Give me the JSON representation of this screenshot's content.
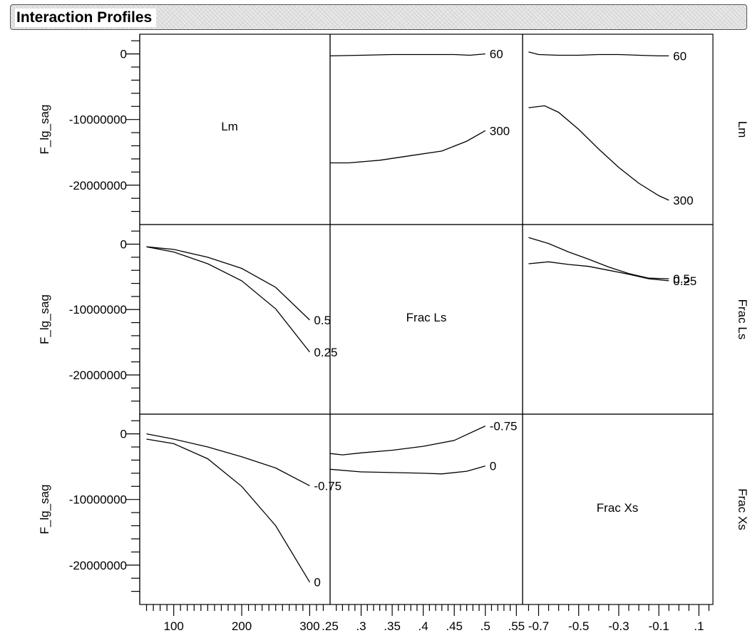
{
  "header": {
    "title": "Interaction Profiles"
  },
  "chart_data": {
    "type": "line",
    "title": "Interaction Profiles",
    "response_label": "F_lg_sag",
    "y_ticks": [
      0,
      -10000000,
      -20000000
    ],
    "y_tick_labels": [
      "0",
      "-10000000",
      "-20000000"
    ],
    "ylim": [
      -26000000,
      3000000
    ],
    "factors": [
      {
        "name": "Lm",
        "xlim": [
          50,
          330
        ],
        "ticks": [
          100,
          200,
          300
        ],
        "tick_labels": [
          "100",
          "200",
          "300"
        ]
      },
      {
        "name": "Frac Ls",
        "xlim": [
          0.25,
          0.56
        ],
        "ticks": [
          0.25,
          0.3,
          0.35,
          0.4,
          0.45,
          0.5,
          0.55
        ],
        "tick_labels": [
          ".25",
          ".3",
          ".35",
          ".4",
          ".45",
          ".5",
          ".55"
        ]
      },
      {
        "name": "Frac Xs",
        "xlim": [
          -0.78,
          0.17
        ],
        "ticks": [
          -0.7,
          -0.5,
          -0.3,
          -0.1,
          0.1
        ],
        "tick_labels": [
          "-0.7",
          "-0.5",
          "-0.3",
          "-0.1",
          ".1"
        ]
      }
    ],
    "panels": [
      {
        "row": 0,
        "col": 1,
        "series": [
          {
            "name": "60",
            "x": [
              0.25,
              0.3,
              0.35,
              0.4,
              0.45,
              0.475,
              0.5
            ],
            "y": [
              -300000,
              -200000,
              -100000,
              -100000,
              -100000,
              -200000,
              0
            ]
          },
          {
            "name": "300",
            "x": [
              0.25,
              0.28,
              0.33,
              0.38,
              0.43,
              0.47,
              0.5
            ],
            "y": [
              -16600000,
              -16600000,
              -16200000,
              -15500000,
              -14800000,
              -13300000,
              -11700000
            ]
          }
        ]
      },
      {
        "row": 0,
        "col": 2,
        "series": [
          {
            "name": "60",
            "x": [
              -0.75,
              -0.7,
              -0.6,
              -0.5,
              -0.4,
              -0.3,
              -0.2,
              -0.1,
              -0.05
            ],
            "y": [
              300000,
              -100000,
              -200000,
              -200000,
              -100000,
              -100000,
              -200000,
              -300000,
              -300000
            ]
          },
          {
            "name": "300",
            "x": [
              -0.75,
              -0.67,
              -0.6,
              -0.5,
              -0.4,
              -0.3,
              -0.2,
              -0.1,
              -0.05
            ],
            "y": [
              -8200000,
              -7900000,
              -8900000,
              -11500000,
              -14500000,
              -17300000,
              -19700000,
              -21600000,
              -22300000
            ]
          }
        ]
      },
      {
        "row": 1,
        "col": 0,
        "series": [
          {
            "name": "0.5",
            "x": [
              60,
              100,
              150,
              200,
              250,
              300
            ],
            "y": [
              -400000,
              -800000,
              -2000000,
              -3700000,
              -6600000,
              -11600000
            ]
          },
          {
            "name": "0.25",
            "x": [
              60,
              100,
              150,
              200,
              250,
              300
            ],
            "y": [
              -400000,
              -1200000,
              -3000000,
              -5600000,
              -9900000,
              -16500000
            ]
          }
        ]
      },
      {
        "row": 1,
        "col": 2,
        "series": [
          {
            "name": "0.5",
            "x": [
              -0.75,
              -0.65,
              -0.55,
              -0.45,
              -0.35,
              -0.25,
              -0.15,
              -0.05
            ],
            "y": [
              1000000,
              100000,
              -1200000,
              -2300000,
              -3500000,
              -4500000,
              -5200000,
              -5300000
            ]
          },
          {
            "name": "0.25",
            "x": [
              -0.75,
              -0.65,
              -0.55,
              -0.45,
              -0.35,
              -0.25,
              -0.15,
              -0.05
            ],
            "y": [
              -3000000,
              -2700000,
              -3100000,
              -3400000,
              -4000000,
              -4600000,
              -5300000,
              -5600000
            ]
          }
        ]
      },
      {
        "row": 2,
        "col": 0,
        "series": [
          {
            "name": "-0.75",
            "x": [
              60,
              100,
              150,
              200,
              250,
              300
            ],
            "y": [
              0,
              -800000,
              -2000000,
              -3500000,
              -5200000,
              -7900000
            ]
          },
          {
            "name": "0",
            "x": [
              60,
              100,
              150,
              200,
              250,
              300
            ],
            "y": [
              -800000,
              -1500000,
              -3800000,
              -8000000,
              -14000000,
              -22600000
            ]
          }
        ]
      },
      {
        "row": 2,
        "col": 1,
        "series": [
          {
            "name": "-0.75",
            "x": [
              0.25,
              0.27,
              0.3,
              0.35,
              0.4,
              0.45,
              0.5
            ],
            "y": [
              -3000000,
              -3200000,
              -2900000,
              -2500000,
              -1900000,
              -1000000,
              1200000
            ]
          },
          {
            "name": "0",
            "x": [
              0.25,
              0.3,
              0.35,
              0.4,
              0.43,
              0.47,
              0.5
            ],
            "y": [
              -5400000,
              -5800000,
              -5900000,
              -6000000,
              -6100000,
              -5700000,
              -4900000
            ]
          }
        ]
      }
    ]
  }
}
